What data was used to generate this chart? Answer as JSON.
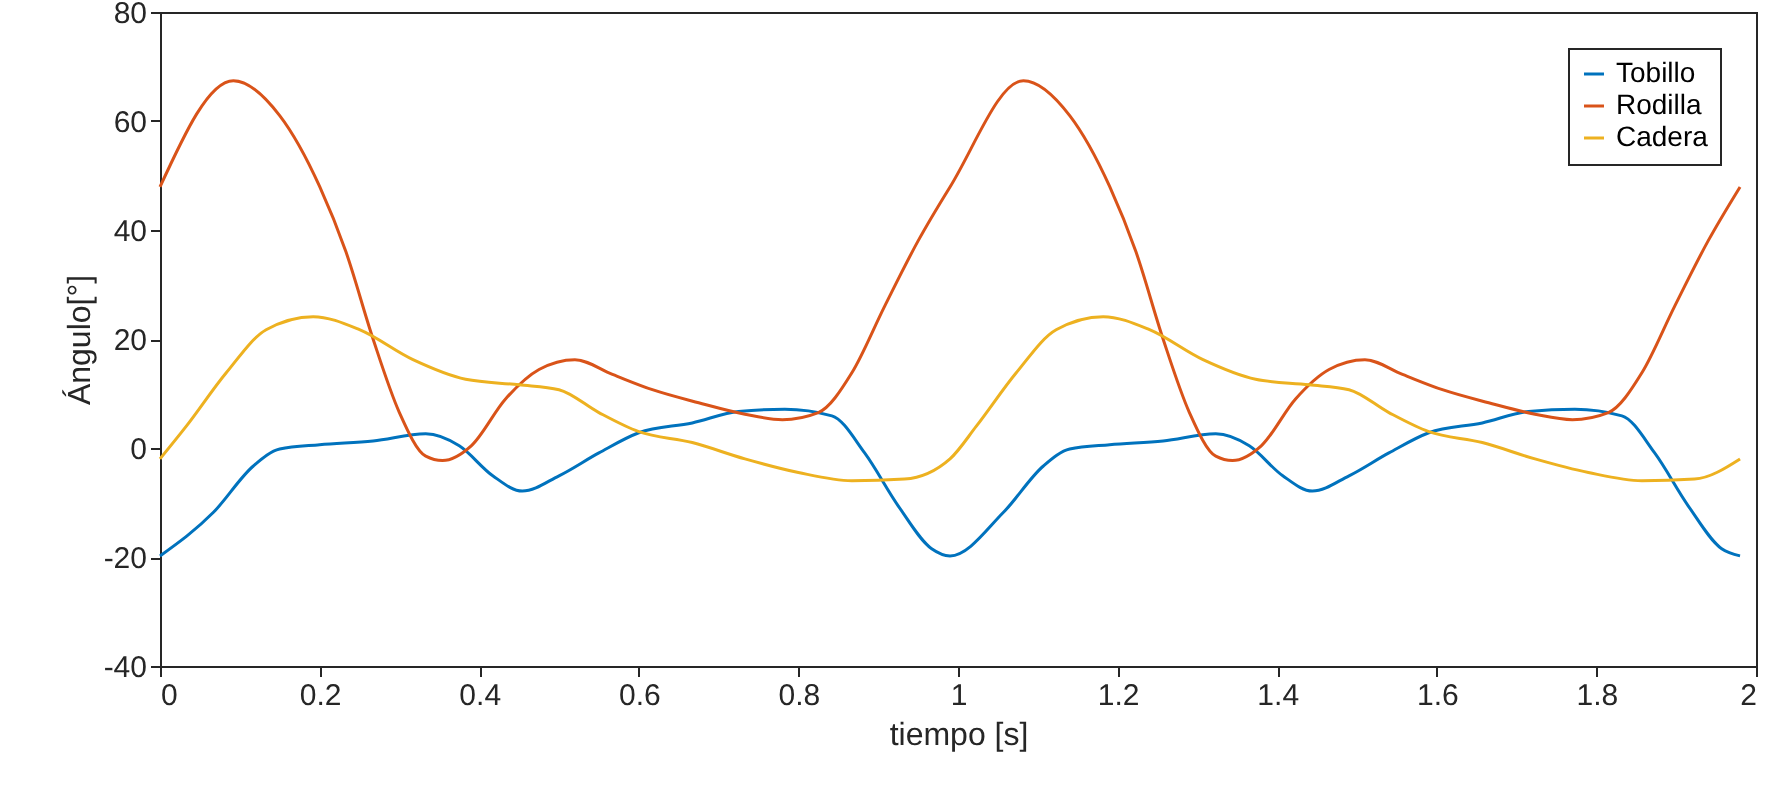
{
  "chart_data": {
    "type": "line",
    "xlabel": "tiempo [s]",
    "ylabel": "Ángulo[°]",
    "xlim": [
      0,
      2
    ],
    "xticks": [
      0,
      0.2,
      0.4,
      0.6,
      0.8,
      1,
      1.2,
      1.4,
      1.6,
      1.8,
      2
    ],
    "ylim": [
      -40,
      80
    ],
    "yticks": [
      -40,
      -20,
      0,
      20,
      40,
      60,
      80
    ],
    "grid": false,
    "legend": "top right",
    "series": [
      {
        "name": "Tobillo",
        "color": "#0072bd",
        "x": [
          0,
          0.067,
          0.117,
          0.15,
          0.2,
          0.267,
          0.333,
          0.375,
          0.417,
          0.454,
          0.5,
          0.55,
          0.6,
          0.667,
          0.725,
          0.783,
          0.842,
          0.883,
          0.925,
          0.967,
          0.99,
          1.057,
          1.107,
          1.14,
          1.19,
          1.257,
          1.323,
          1.365,
          1.407,
          1.444,
          1.49,
          1.54,
          1.59,
          1.657,
          1.715,
          1.773,
          1.832,
          1.873,
          1.915,
          1.957,
          1.98
        ],
        "values": [
          -19.8,
          -11.8,
          -3.3,
          -0.2,
          0.6,
          1.3,
          2.6,
          0.4,
          -5.1,
          -7.9,
          -5.1,
          -0.9,
          2.8,
          4.6,
          6.7,
          7.1,
          5.9,
          -0.9,
          -10.6,
          -18.5,
          -19.8,
          -11.8,
          -3.3,
          -0.2,
          0.6,
          1.3,
          2.6,
          0.4,
          -5.1,
          -7.9,
          -5.1,
          -0.9,
          2.8,
          4.6,
          6.7,
          7.1,
          5.9,
          -0.9,
          -10.6,
          -18.5,
          -19.8
        ]
      },
      {
        "name": "Rodilla",
        "color": "#d95319",
        "x": [
          0,
          0.092,
          0.15,
          0.2,
          0.233,
          0.267,
          0.3,
          0.333,
          0.354,
          0.39,
          0.433,
          0.475,
          0.52,
          0.567,
          0.617,
          0.675,
          0.733,
          0.78,
          0.825,
          0.867,
          0.908,
          0.95,
          0.99,
          1.082,
          1.14,
          1.19,
          1.223,
          1.257,
          1.29,
          1.323,
          1.344,
          1.38,
          1.423,
          1.465,
          1.51,
          1.557,
          1.607,
          1.665,
          1.723,
          1.77,
          1.815,
          1.857,
          1.898,
          1.94,
          1.98
        ],
        "values": [
          47.9,
          67.4,
          61,
          48,
          36,
          20,
          6.5,
          -1.5,
          -2.3,
          0.4,
          9,
          14.4,
          16.2,
          13.5,
          10.7,
          8.3,
          6.2,
          5.2,
          6.5,
          13.8,
          26,
          38,
          47.9,
          67.4,
          61,
          48,
          36,
          20,
          6.5,
          -1.5,
          -2.3,
          0.4,
          9,
          14.4,
          16.2,
          13.5,
          10.7,
          8.3,
          6.2,
          5.2,
          6.5,
          13.8,
          26,
          38,
          47.9
        ]
      },
      {
        "name": "Cadera",
        "color": "#edb120",
        "x": [
          0,
          0.033,
          0.083,
          0.133,
          0.192,
          0.25,
          0.317,
          0.383,
          0.45,
          0.5,
          0.55,
          0.6,
          0.667,
          0.733,
          0.8,
          0.867,
          0.933,
          0.99,
          1.023,
          1.073,
          1.123,
          1.182,
          1.24,
          1.307,
          1.373,
          1.44,
          1.49,
          1.54,
          1.59,
          1.657,
          1.723,
          1.79,
          1.857,
          1.923,
          1.98
        ],
        "values": [
          -2,
          4,
          13.8,
          21.7,
          24.1,
          21.7,
          16.2,
          12.6,
          11.6,
          10.7,
          6.5,
          3,
          1,
          -2,
          -4.5,
          -6,
          -5.7,
          -2,
          4,
          13.8,
          21.7,
          24.1,
          21.7,
          16.2,
          12.6,
          11.6,
          10.7,
          6.5,
          3,
          1,
          -2,
          -4.5,
          -6,
          -5.7,
          -2
        ]
      }
    ]
  }
}
